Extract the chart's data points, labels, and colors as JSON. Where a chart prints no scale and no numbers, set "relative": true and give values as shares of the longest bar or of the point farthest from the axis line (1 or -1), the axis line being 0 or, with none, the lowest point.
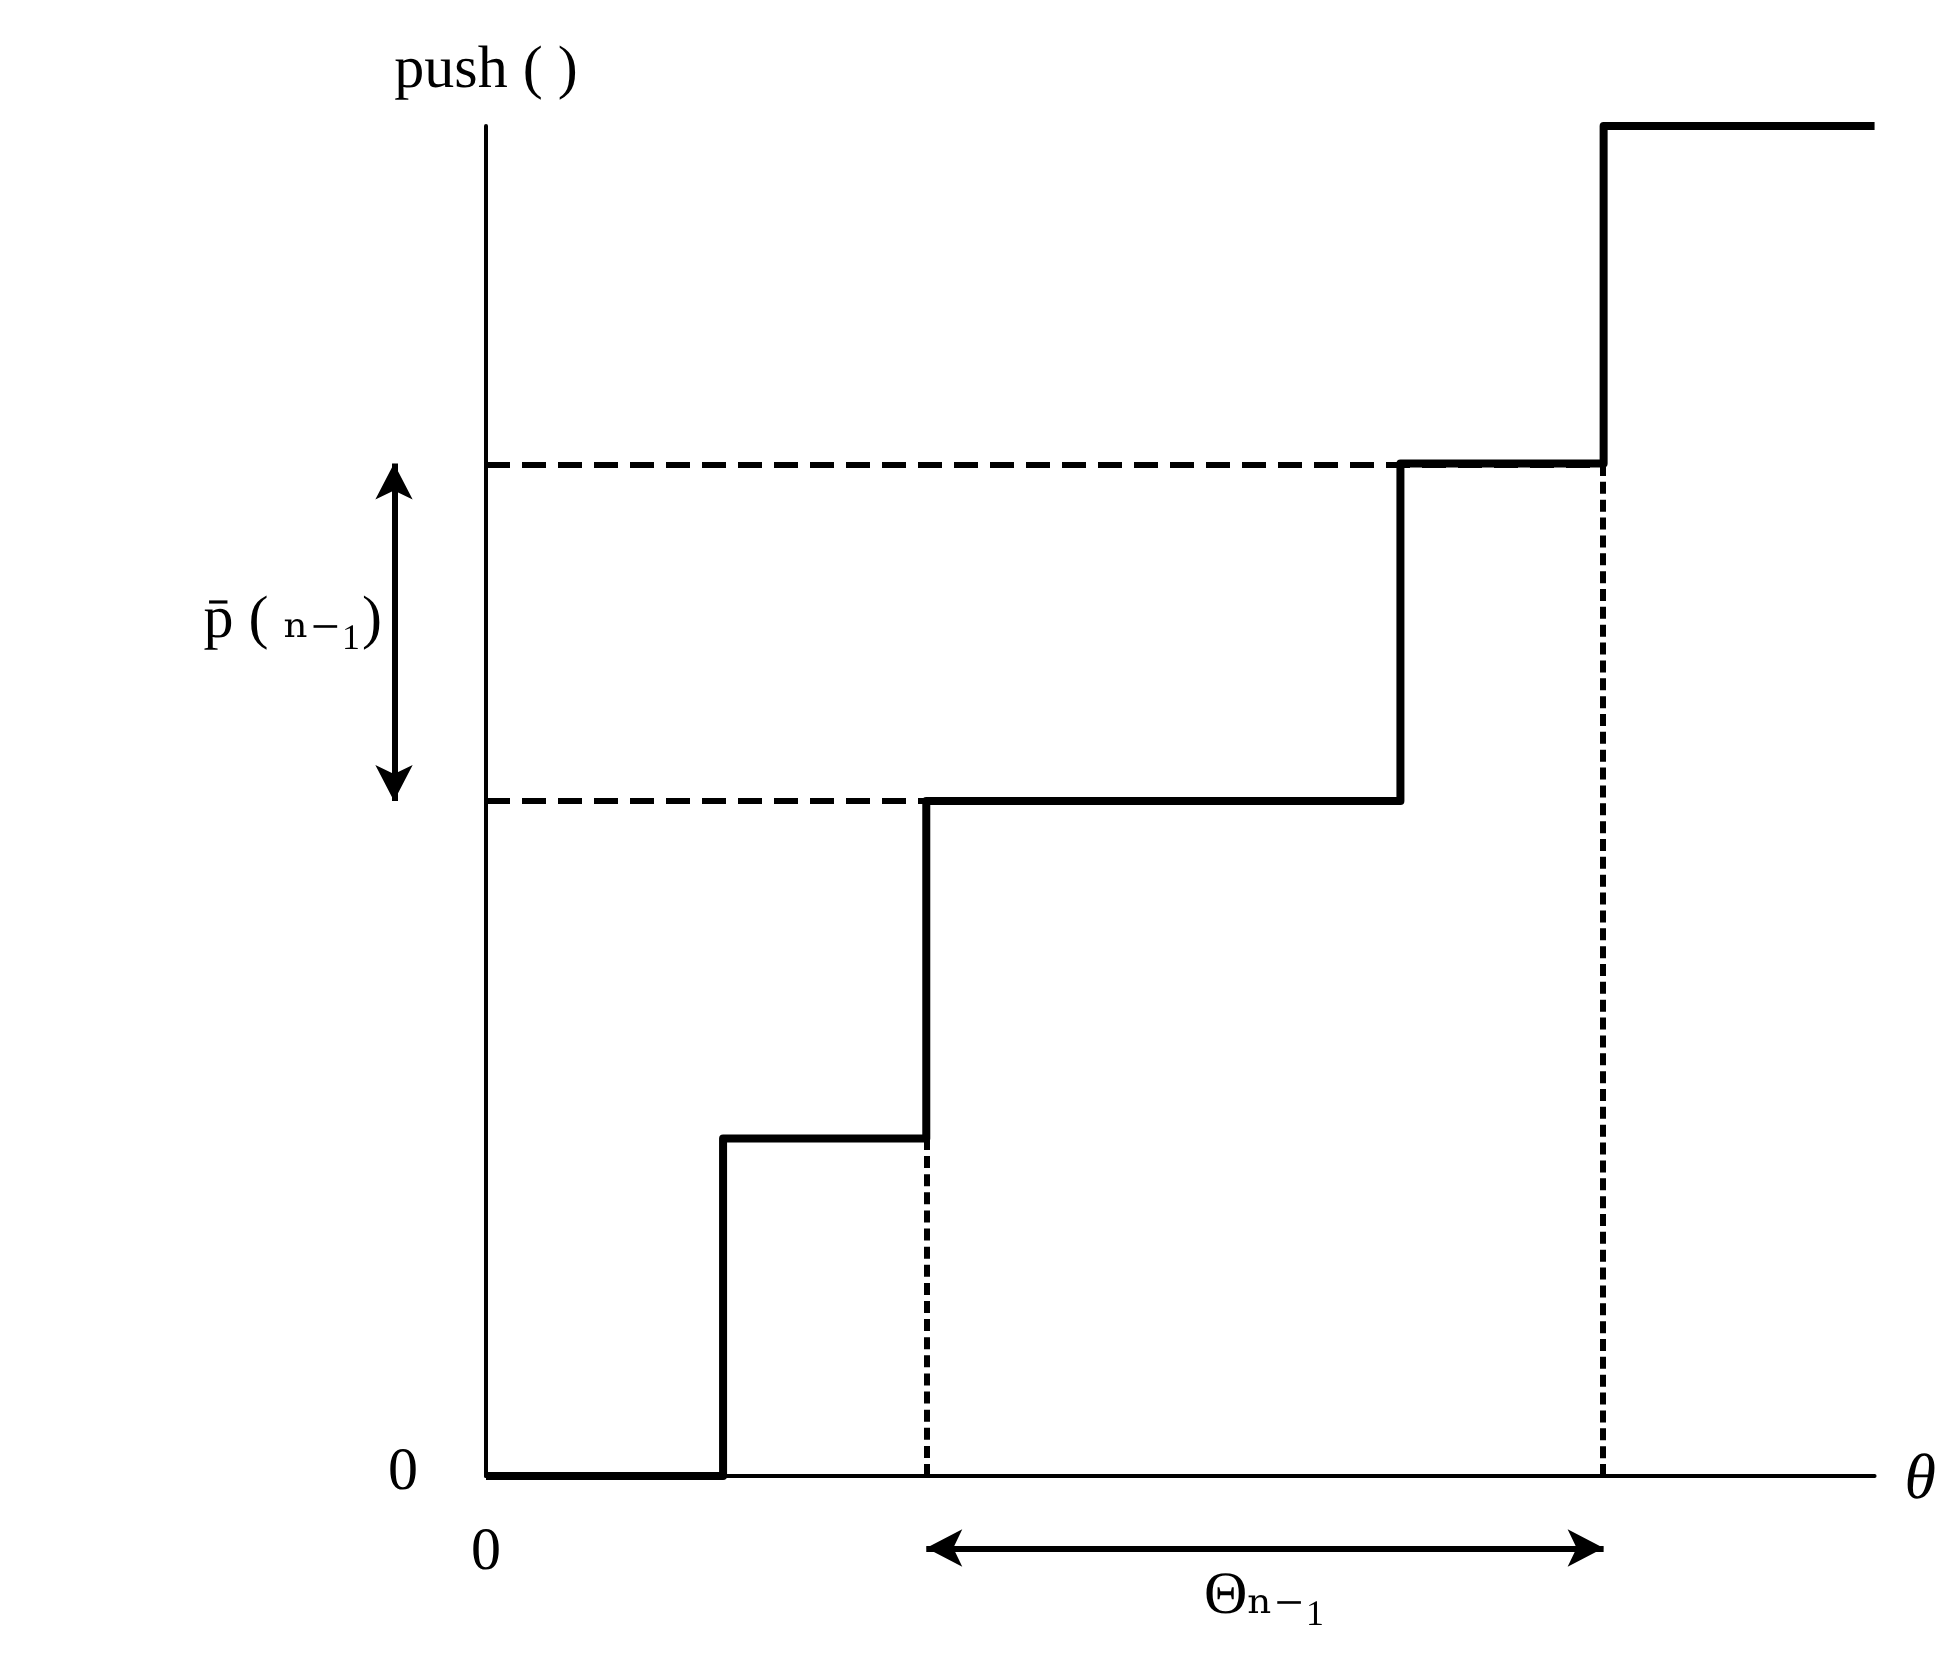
{
  "chart_data": {
    "type": "step",
    "relative": true,
    "xlabel": "θ",
    "ylabel": "push ( )",
    "categories": [
      null,
      null,
      null,
      null,
      null,
      null,
      null,
      null,
      null,
      null,
      null,
      null,
      null,
      null,
      null,
      null,
      null,
      null,
      null,
      null,
      null,
      null,
      null,
      null,
      null,
      null,
      null,
      null,
      null,
      null,
      null,
      null,
      null,
      null,
      null,
      null,
      null,
      null,
      null,
      null,
      null,
      null
    ],
    "values": [
      0,
      0,
      0,
      0,
      0,
      0,
      0,
      0.25,
      0.25,
      0.25,
      0.25,
      0.25,
      0.25,
      0.5,
      0.5,
      0.5,
      0.5,
      0.5,
      0.5,
      0.5,
      0.5,
      0.5,
      0.5,
      0.5,
      0.5,
      0.5,
      0.5,
      0.75,
      0.75,
      0.75,
      0.75,
      0.75,
      0.75,
      1,
      1,
      1,
      1,
      1,
      1,
      1,
      1,
      1
    ],
    "color": "#000000",
    "line_style": "solid",
    "grid": false,
    "ref_lines": [
      {
        "axis": "y",
        "value": 0.5,
        "color": "#000000",
        "line_style": "dashed"
      },
      {
        "axis": "y",
        "value": 0.75,
        "color": "#000000",
        "line_style": "dashed"
      }
    ],
    "annotations": [
      "0",
      "0",
      "p̄ ( ₙ₋₁)",
      "Θₙ₋₁"
    ]
  }
}
